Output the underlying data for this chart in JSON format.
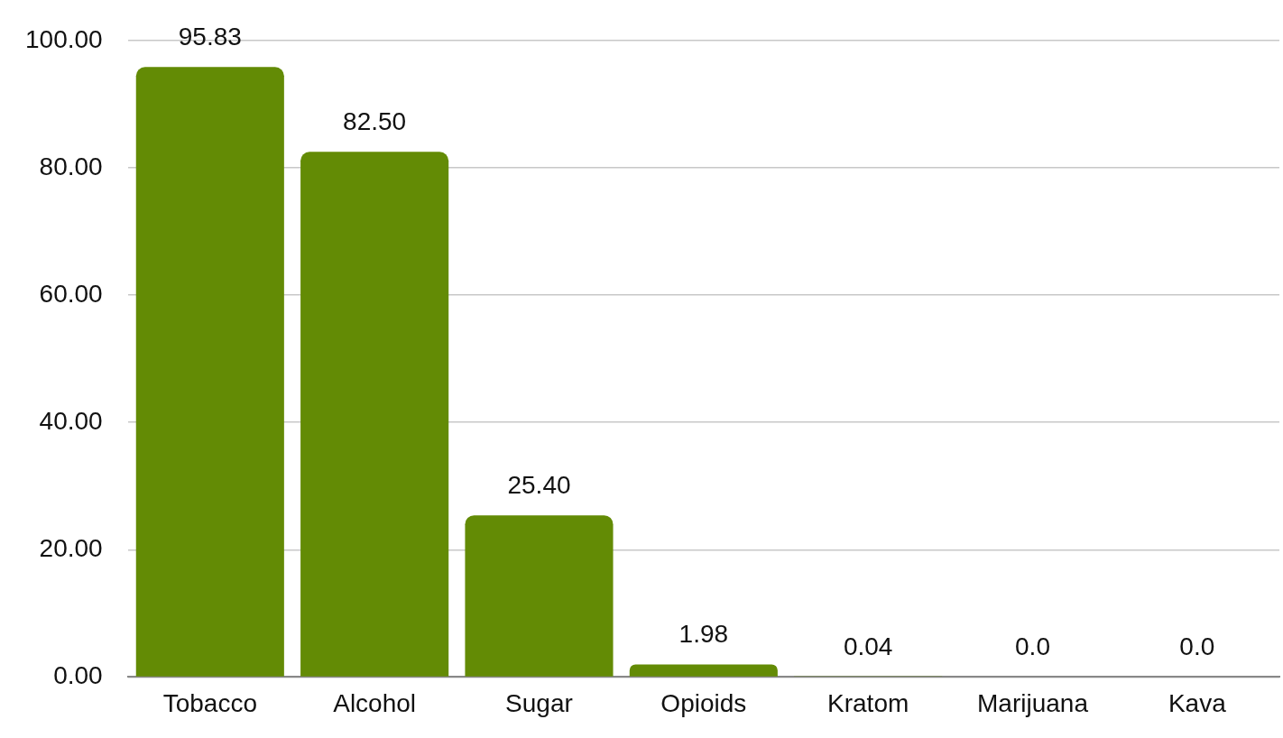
{
  "chart_data": {
    "type": "bar",
    "categories": [
      "Tobacco",
      "Alcohol",
      "Sugar",
      "Opioids",
      "Kratom",
      "Marijuana",
      "Kava"
    ],
    "values": [
      95.83,
      82.5,
      25.4,
      1.98,
      0.04,
      0.0,
      0.0
    ],
    "value_labels": [
      "95.83",
      "82.50",
      "25.40",
      "1.98",
      "0.04",
      "0.0",
      "0.0"
    ],
    "color": "#638b05",
    "ylim": [
      0,
      100
    ],
    "yticks": [
      {
        "value": 0,
        "label": "0.00"
      },
      {
        "value": 20,
        "label": "20.00"
      },
      {
        "value": 40,
        "label": "40.00"
      },
      {
        "value": 60,
        "label": "60.00"
      },
      {
        "value": 80,
        "label": "80.00"
      },
      {
        "value": 100,
        "label": "100.00"
      }
    ],
    "grid": "y",
    "legend": false
  }
}
